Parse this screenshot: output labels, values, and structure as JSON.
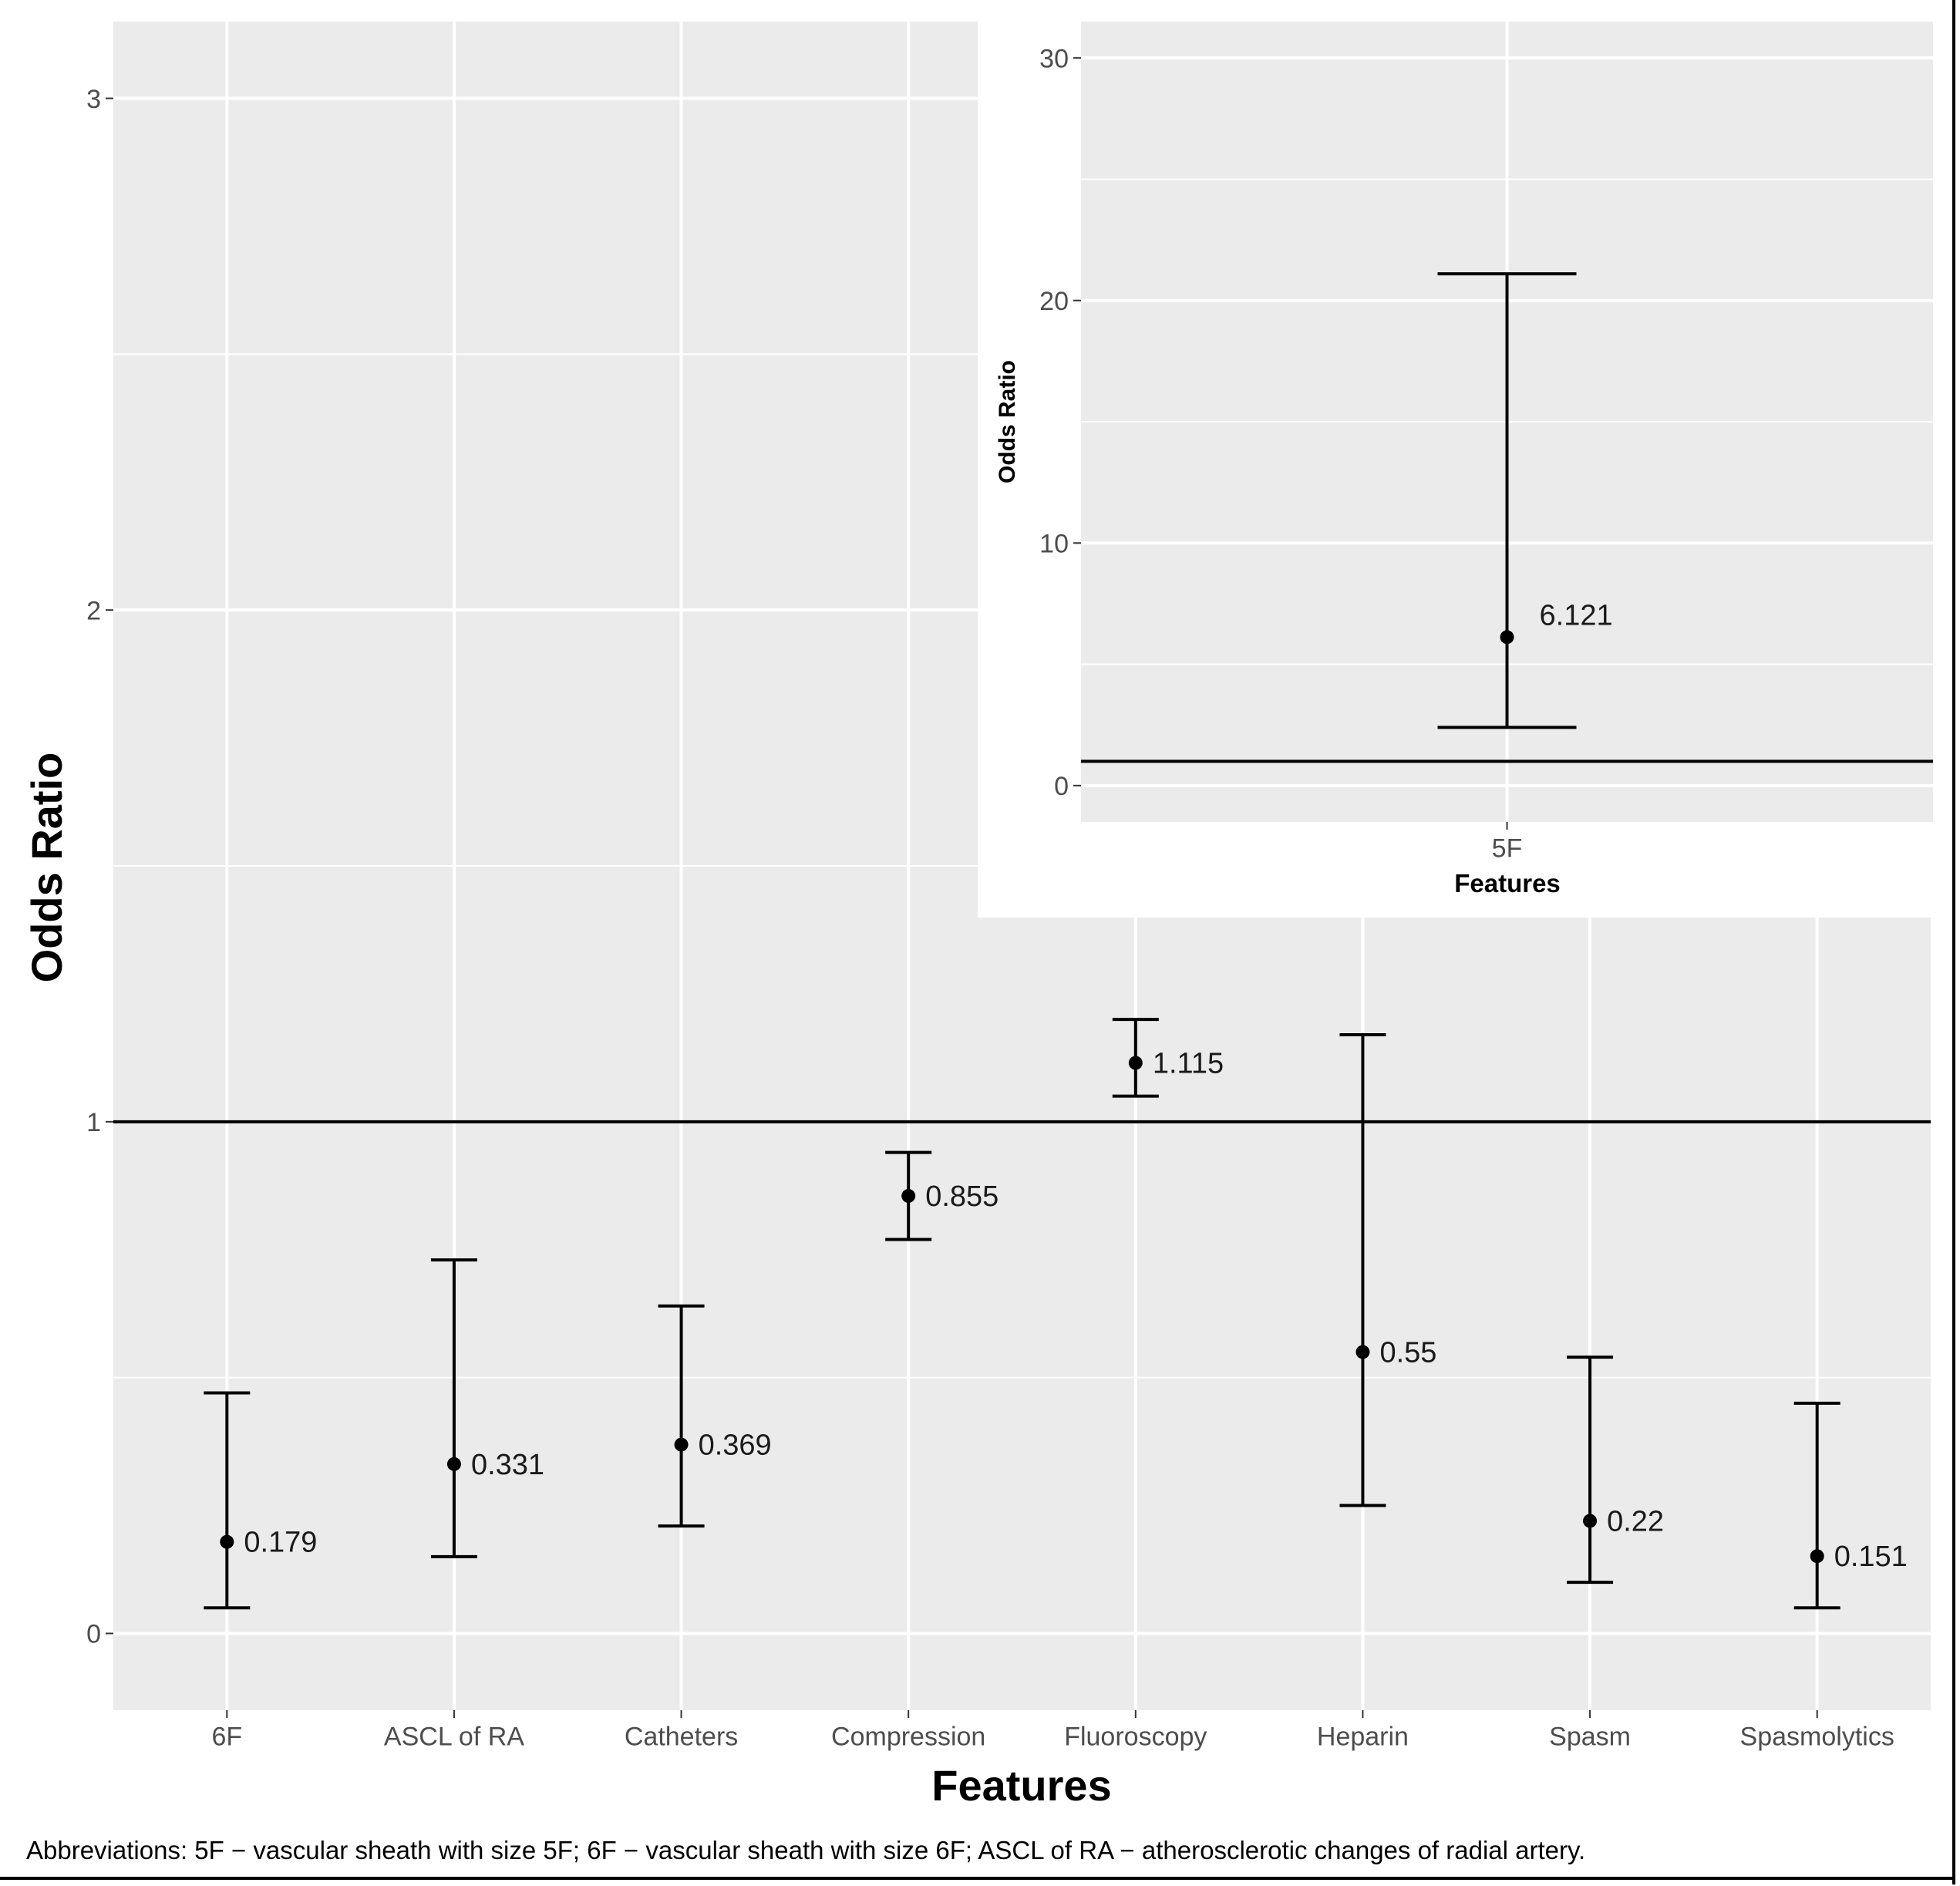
{
  "footnote": "Abbreviations: 5F − vascular sheath with size 5F; 6F − vascular sheath with size 6F; ASCL of RA − atherosclerotic changes of radial artery.",
  "colors": {
    "panel_background": "#ebebeb",
    "grid": "#ffffff",
    "mark": "#000000",
    "tick_text": "#4d4d4d"
  },
  "chart_data": [
    {
      "type": "errorbar",
      "title": "",
      "xlabel": "Features",
      "ylabel": "Odds Ratio",
      "ylim": [
        -0.15,
        3.15
      ],
      "yticks": [
        0,
        1,
        2,
        3
      ],
      "reference_line": 1,
      "grid": true,
      "categories": [
        "6F",
        "ASCL of RA",
        "Catheters",
        "Compression",
        "Fluoroscopy",
        "Heparin",
        "Spasm",
        "Spasmolytics"
      ],
      "points": [
        {
          "label": "6F",
          "or": 0.179,
          "lower": 0.05,
          "upper": 0.47,
          "value_label": "0.179"
        },
        {
          "label": "ASCL of RA",
          "or": 0.331,
          "lower": 0.15,
          "upper": 0.73,
          "value_label": "0.331"
        },
        {
          "label": "Catheters",
          "or": 0.369,
          "lower": 0.21,
          "upper": 0.64,
          "value_label": "0.369"
        },
        {
          "label": "Compression",
          "or": 0.855,
          "lower": 0.77,
          "upper": 0.94,
          "value_label": "0.855"
        },
        {
          "label": "Fluoroscopy",
          "or": 1.115,
          "lower": 1.05,
          "upper": 1.2,
          "value_label": "1.115"
        },
        {
          "label": "Heparin",
          "or": 0.55,
          "lower": 0.25,
          "upper": 1.17,
          "value_label": "0.55"
        },
        {
          "label": "Spasm",
          "or": 0.22,
          "lower": 0.1,
          "upper": 0.54,
          "value_label": "0.22"
        },
        {
          "label": "Spasmolytics",
          "or": 0.151,
          "lower": 0.05,
          "upper": 0.45,
          "value_label": "0.151"
        }
      ]
    },
    {
      "type": "errorbar",
      "title": "",
      "xlabel": "Features",
      "ylabel": "Odds Ratio",
      "ylim": [
        -1.5,
        31.5
      ],
      "yticks": [
        0,
        10,
        20,
        30
      ],
      "reference_line": 1,
      "grid": true,
      "legend": "none",
      "categories": [
        "5F"
      ],
      "points": [
        {
          "label": "5F",
          "or": 6.121,
          "lower": 2.4,
          "upper": 21.1,
          "value_label": "6.121"
        }
      ]
    }
  ]
}
